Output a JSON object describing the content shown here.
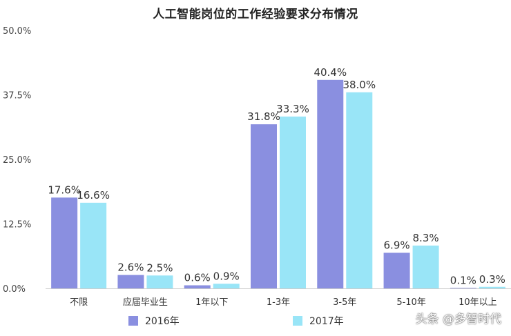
{
  "chart_data": {
    "type": "bar",
    "title": "人工智能岗位的工作经验要求分布情况",
    "xlabel": "",
    "ylabel": "",
    "categories": [
      "不限",
      "应届毕业生",
      "1年以下",
      "1-3年",
      "3-5年",
      "5-10年",
      "10年以上"
    ],
    "series": [
      {
        "name": "2016年",
        "color": "#8A8FE0",
        "values": [
          17.6,
          2.6,
          0.6,
          31.8,
          40.4,
          6.9,
          0.1
        ],
        "labels": [
          "17.6%",
          "2.6%",
          "0.6%",
          "31.8%",
          "40.4%",
          "6.9%",
          "0.1%"
        ]
      },
      {
        "name": "2017年",
        "color": "#99E5F7",
        "values": [
          16.6,
          2.5,
          0.9,
          33.3,
          38.0,
          8.3,
          0.3
        ],
        "labels": [
          "16.6%",
          "2.5%",
          "0.9%",
          "33.3%",
          "38.0%",
          "8.3%",
          "0.3%"
        ]
      }
    ],
    "yticks": [
      "0.0%",
      "12.5%",
      "25.0%",
      "37.5%",
      "50.0%"
    ],
    "ylim": [
      0,
      50
    ],
    "grid": false,
    "legend_position": "bottom"
  },
  "watermark": "头条 @多智时代"
}
